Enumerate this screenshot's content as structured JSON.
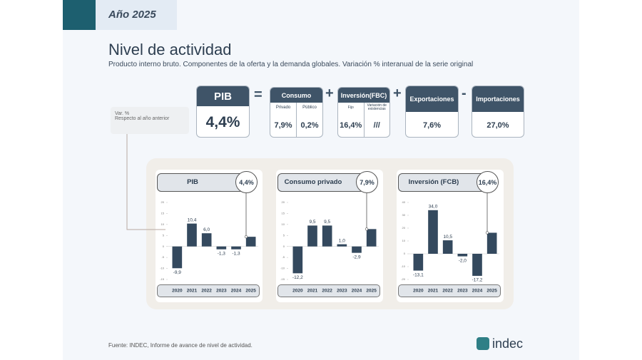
{
  "header": {
    "year": "Año 2025",
    "title": "Nivel de actividad",
    "subtitle": "Producto interno bruto. Componentes de la oferta y la demanda globales. Variación % interanual de la serie original"
  },
  "note": [
    "Var. %",
    "Respecto al año anterior"
  ],
  "equation": {
    "pib": {
      "label": "PIB",
      "value": "4,4%"
    },
    "ops": [
      "=",
      "+",
      "+",
      "-"
    ],
    "consumo": {
      "label": "Consumo",
      "cols": [
        "Privado",
        "Público"
      ],
      "values": [
        "7,9%",
        "0,2%"
      ]
    },
    "inversion": {
      "label": "Inversión(FBC)",
      "cols": [
        "Fijo",
        "Variación de existencias"
      ],
      "values": [
        "16,4%",
        "///"
      ]
    },
    "exportaciones": {
      "label": "Exportaciones",
      "value": "7,6%"
    },
    "importaciones": {
      "label": "Importaciones",
      "value": "27,0%"
    }
  },
  "chart_data": [
    {
      "type": "bar",
      "title": "PIB",
      "color": "#34495e",
      "categories": [
        "2020",
        "2021",
        "2022",
        "2023",
        "2024",
        "2025"
      ],
      "values": [
        -9.9,
        10.4,
        6.0,
        -1.3,
        -1.3,
        4.4
      ],
      "value_labels": [
        "-9,9",
        "10,4",
        "6,0",
        "-1,3",
        "-1,3",
        "4,4%"
      ],
      "ylim": [
        -15,
        20
      ],
      "yticks": [
        -15,
        -10,
        -5,
        0,
        5,
        10,
        15,
        20
      ]
    },
    {
      "type": "bar",
      "title": "Consumo privado",
      "color": "#34495e",
      "categories": [
        "2020",
        "2021",
        "2022",
        "2023",
        "2024",
        "2025"
      ],
      "values": [
        -12.2,
        9.5,
        9.5,
        1.0,
        -2.9,
        7.9
      ],
      "value_labels": [
        "-12,2",
        "9,5",
        "9,5",
        "1,0",
        "-2,9",
        "7,9%"
      ],
      "ylim": [
        -15,
        20
      ],
      "yticks": [
        -15,
        -10,
        -5,
        0,
        5,
        10,
        15,
        20
      ]
    },
    {
      "type": "bar",
      "title": "Inversión (FCB)",
      "color": "#34495e",
      "categories": [
        "2020",
        "2021",
        "2022",
        "2023",
        "2024",
        "2025"
      ],
      "values": [
        -13.1,
        34.0,
        10.5,
        -2.0,
        -17.2,
        16.4
      ],
      "value_labels": [
        "-13,1",
        "34,0",
        "10,5",
        "-2,0",
        "-17,2",
        "16,4%"
      ],
      "ylim": [
        -20,
        40
      ],
      "yticks": [
        -20,
        -10,
        0,
        10,
        20,
        30,
        40
      ]
    }
  ],
  "footer": {
    "source": "Fuente: INDEC, Informe de avance de nivel de actividad.",
    "brand": "indec"
  }
}
